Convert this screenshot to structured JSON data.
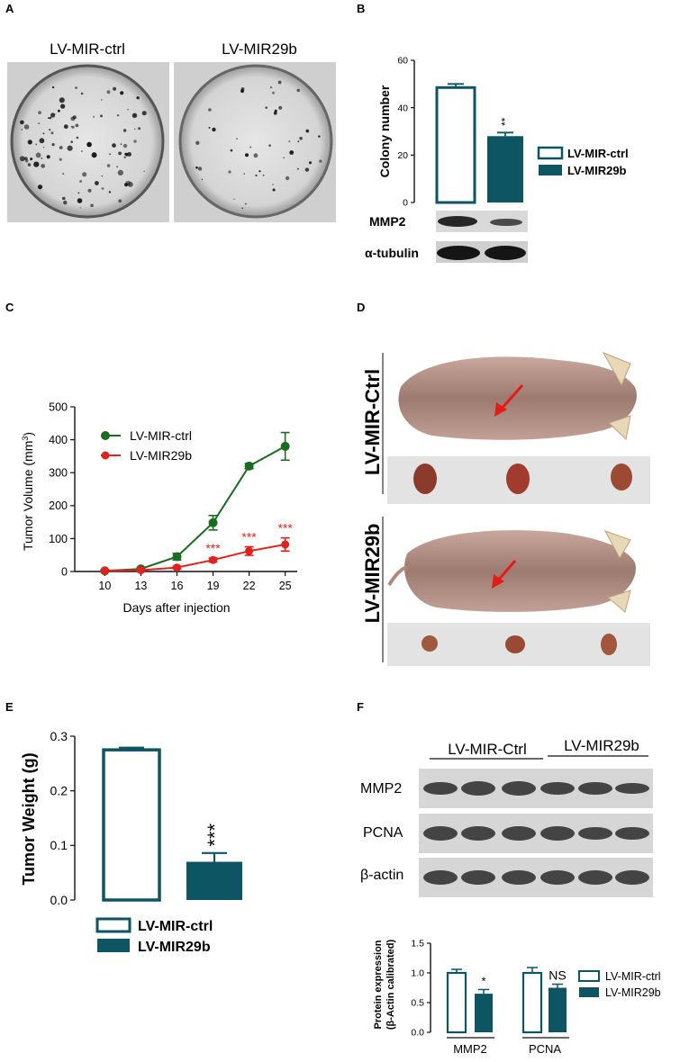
{
  "colors": {
    "teal": "#0e5563",
    "green": "#1d6b20",
    "red": "#e0221f",
    "blot_dark": "#2a2a2a",
    "blot_bg": "#d8d8d8"
  },
  "panel_letters": [
    "A",
    "B",
    "C",
    "D",
    "E",
    "F"
  ],
  "panel_a": {
    "labels": [
      "LV-MIR-ctrl",
      "LV-MIR29b"
    ],
    "images": [
      "colony-dish-photo",
      "colony-dish-photo"
    ]
  },
  "panel_b": {
    "blot_labels": [
      "MMP2",
      "α-tubulin"
    ]
  },
  "panel_d": {
    "row_labels": [
      "LV-MIR-Ctrl",
      "LV-MIR29b"
    ],
    "images": [
      "mouse-photo",
      "tumor-photo",
      "mouse-photo",
      "tumor-photo"
    ]
  },
  "panel_f": {
    "group_labels": [
      "LV-MIR-Ctrl",
      "LV-MIR29b"
    ],
    "blot_labels": [
      "MMP2",
      "PCNA",
      "β-actin"
    ]
  },
  "chart_data": [
    {
      "id": "B",
      "type": "bar",
      "categories": [
        "LV-MIR-ctrl",
        "LV-MIR29b"
      ],
      "values": [
        48.5,
        28
      ],
      "errors": [
        1.5,
        1.5
      ],
      "ylabel": "Colony number",
      "ylim": [
        0,
        60
      ],
      "yticks": [
        "0",
        "20",
        "40",
        "60"
      ],
      "significance": [
        "",
        "**"
      ],
      "legend": [
        "LV-MIR-ctrl",
        "LV-MIR29b"
      ],
      "legend_position": "right"
    },
    {
      "id": "C",
      "type": "line",
      "x": [
        10,
        13,
        16,
        19,
        22,
        25
      ],
      "xticks": [
        "10",
        "13",
        "16",
        "19",
        "22",
        "25"
      ],
      "series": [
        {
          "name": "LV-MIR-ctrl",
          "values": [
            2,
            8,
            45,
            148,
            320,
            380
          ],
          "errors": [
            3,
            3,
            10,
            22,
            8,
            42
          ]
        },
        {
          "name": "LV-MIR29b",
          "values": [
            2,
            4,
            12,
            35,
            62,
            82
          ],
          "errors": [
            2,
            2,
            4,
            6,
            13,
            20
          ]
        }
      ],
      "significance": {
        "x": [
          19,
          22,
          25
        ],
        "label": "***"
      },
      "xlabel": "Days after injection",
      "ylabel": "Tumor Volume (mm",
      "ylabel_sup": "3",
      "ylabel_end": ")",
      "ylim": [
        0,
        500
      ],
      "yticks": [
        "0",
        "100",
        "200",
        "300",
        "400",
        "500"
      ],
      "legend_position": "top-left"
    },
    {
      "id": "E",
      "type": "bar",
      "categories": [
        "LV-MIR-ctrl",
        "LV-MIR29b"
      ],
      "values": [
        0.275,
        0.07
      ],
      "errors": [
        0.004,
        0.016
      ],
      "ylabel": "Tumor Weight (g)",
      "ylim": [
        0,
        0.3
      ],
      "yticks": [
        "0.0",
        "0.1",
        "0.2",
        "0.3"
      ],
      "significance": [
        "",
        "***"
      ],
      "legend": [
        "LV-MIR-ctrl",
        "LV-MIR29b"
      ],
      "legend_position": "bottom"
    },
    {
      "id": "F",
      "type": "bar",
      "categories": [
        "MMP2",
        "PCNA"
      ],
      "series": [
        {
          "name": "LV-MIR-ctrl",
          "values": [
            1.0,
            1.0
          ],
          "errors": [
            0.06,
            0.09
          ]
        },
        {
          "name": "LV-MIR29b",
          "values": [
            0.65,
            0.75
          ],
          "errors": [
            0.07,
            0.06
          ]
        }
      ],
      "ylabel_line1": "Protein expression",
      "ylabel_line2": "(β-Actin calibrated)",
      "ylim": [
        0,
        1.5
      ],
      "yticks": [
        "0.0",
        "0.5",
        "1.0",
        "1.5"
      ],
      "significance": [
        "*",
        "NS"
      ],
      "legend_position": "right"
    }
  ]
}
